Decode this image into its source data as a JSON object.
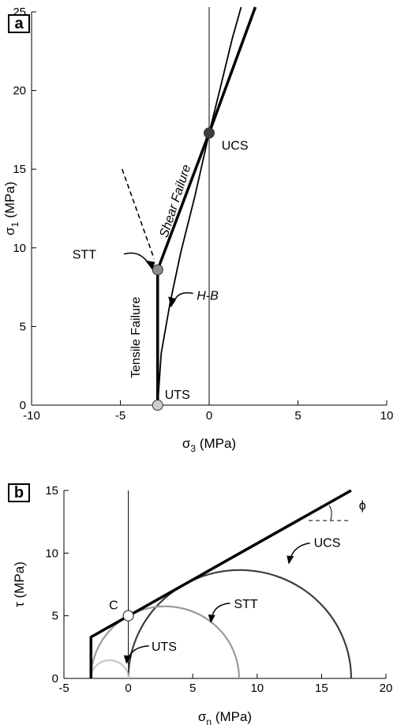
{
  "chart_data": [
    {
      "panel": "a",
      "type": "line",
      "xlabel": "σ3 (MPa)",
      "xlabel_main": "σ",
      "xlabel_sub": "3",
      "xlabel_unit": " (MPa)",
      "ylabel_main": "σ",
      "ylabel_sub": "1",
      "ylabel_unit": " (MPa)",
      "xlim": [
        -10,
        10
      ],
      "ylim": [
        0,
        25
      ],
      "xticks": [
        -10,
        -5,
        0,
        5,
        10
      ],
      "yticks": [
        0,
        5,
        10,
        15,
        20,
        25
      ],
      "grid": false,
      "series": [
        {
          "role": "failure-envelope-thick",
          "points": [
            [
              -2.9,
              0
            ],
            [
              -2.9,
              8.6
            ],
            [
              0,
              17.3
            ],
            [
              2.6,
              25.3
            ]
          ]
        },
        {
          "role": "hoek-brown-curve",
          "points": [
            [
              -2.9,
              0
            ],
            [
              -2.7,
              3.3
            ],
            [
              -2.2,
              6.5
            ],
            [
              -1.6,
              9.7
            ],
            [
              -0.8,
              13.3
            ],
            [
              0,
              17.3
            ],
            [
              0.7,
              20.5
            ],
            [
              1.3,
              23.3
            ],
            [
              1.8,
              25.3
            ]
          ]
        },
        {
          "role": "tension-cutoff-extension",
          "points": [
            [
              -4.9,
              15.0
            ],
            [
              -3.1,
              9.3
            ]
          ]
        },
        {
          "role": "vertical-zero-line",
          "points": [
            [
              0,
              0
            ],
            [
              0,
              25.3
            ]
          ]
        }
      ],
      "markers": [
        {
          "label": "UCS",
          "x": 0,
          "y": 17.3,
          "fill": "#3d3d3d"
        },
        {
          "label": "STT",
          "x": -2.9,
          "y": 8.6,
          "fill": "#8c8c8c"
        },
        {
          "label": "UTS",
          "x": -2.9,
          "y": 0,
          "fill": "#cfcfcf"
        }
      ],
      "annotations": {
        "shear": "Shear Failure",
        "tensile": "Tensile Failure",
        "hb": "H-B",
        "ucs": "UCS",
        "stt": "STT",
        "uts": "UTS"
      }
    },
    {
      "panel": "b",
      "type": "line",
      "xlabel": "σn (MPa)",
      "xlabel_main": "σ",
      "xlabel_sub": "n",
      "xlabel_unit": " (MPa)",
      "ylabel": "τ (MPa)",
      "xlim": [
        -5,
        20
      ],
      "ylim": [
        0,
        15
      ],
      "xticks": [
        -5,
        0,
        5,
        10,
        15,
        20
      ],
      "yticks": [
        0,
        5,
        10,
        15
      ],
      "grid": false,
      "envelope": [
        [
          -2.9,
          0
        ],
        [
          -2.9,
          3.3
        ],
        [
          17.3,
          15.0
        ]
      ],
      "circles": [
        {
          "label": "UCS",
          "center": 8.65,
          "radius": 8.65,
          "color": "#3d3d3d"
        },
        {
          "label": "STT",
          "center": 2.85,
          "radius": 5.75,
          "color": "#9a9a9a"
        },
        {
          "label": "UTS",
          "center": -1.45,
          "radius": 1.45,
          "color": "#c8c8c8"
        }
      ],
      "point_c": {
        "label": "C",
        "x": 0,
        "y": 5.0
      },
      "friction_angle_label": "ϕ",
      "annotations": {
        "ucs": "UCS",
        "stt": "STT",
        "uts": "UTS"
      }
    }
  ]
}
